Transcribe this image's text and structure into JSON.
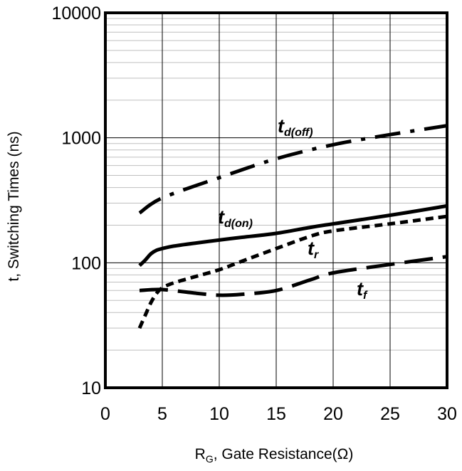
{
  "chart_data": {
    "type": "line",
    "xlabel": {
      "main": "R",
      "sub": "G",
      "rest": ", Gate Resistance(Ω)"
    },
    "ylabel": "t, Switching Times (ns)",
    "xlim": [
      0,
      30
    ],
    "ylim": [
      10,
      10000
    ],
    "yscale": "log",
    "xticks": [
      "0",
      "5",
      "10",
      "15",
      "20",
      "25",
      "30"
    ],
    "yticks": [
      "10",
      "100",
      "1000",
      "10000"
    ],
    "grid": true,
    "series": [
      {
        "name": "t_d(off)",
        "label": {
          "main": "t",
          "sub": "d(off)"
        },
        "style": "dashdot",
        "x": [
          3,
          5,
          10,
          15,
          20,
          25,
          30
        ],
        "y": [
          250,
          330,
          480,
          680,
          880,
          1060,
          1250
        ]
      },
      {
        "name": "t_d(on)",
        "label": {
          "main": "t",
          "sub": "d(on)"
        },
        "style": "solid",
        "x": [
          3,
          3.5,
          4,
          4.5,
          5,
          6,
          8,
          10,
          12,
          15,
          18,
          20,
          25,
          30
        ],
        "y": [
          95,
          105,
          118,
          126,
          130,
          136,
          144,
          152,
          160,
          172,
          192,
          205,
          240,
          285
        ]
      },
      {
        "name": "t_r",
        "label": {
          "main": "t",
          "sub": "r"
        },
        "style": "dashed",
        "x": [
          3,
          3.5,
          4,
          4.5,
          5,
          6,
          8,
          10,
          12,
          15,
          18,
          20,
          25,
          30
        ],
        "y": [
          30,
          38,
          48,
          57,
          63,
          69,
          78,
          88,
          103,
          130,
          163,
          180,
          205,
          235
        ]
      },
      {
        "name": "t_f",
        "label": {
          "main": "t",
          "sub": "f"
        },
        "style": "longdash",
        "x": [
          3,
          5,
          8,
          10,
          12,
          15,
          18,
          20,
          25,
          30
        ],
        "y": [
          60,
          61,
          57,
          55,
          56,
          60,
          73,
          83,
          97,
          112
        ]
      }
    ]
  }
}
